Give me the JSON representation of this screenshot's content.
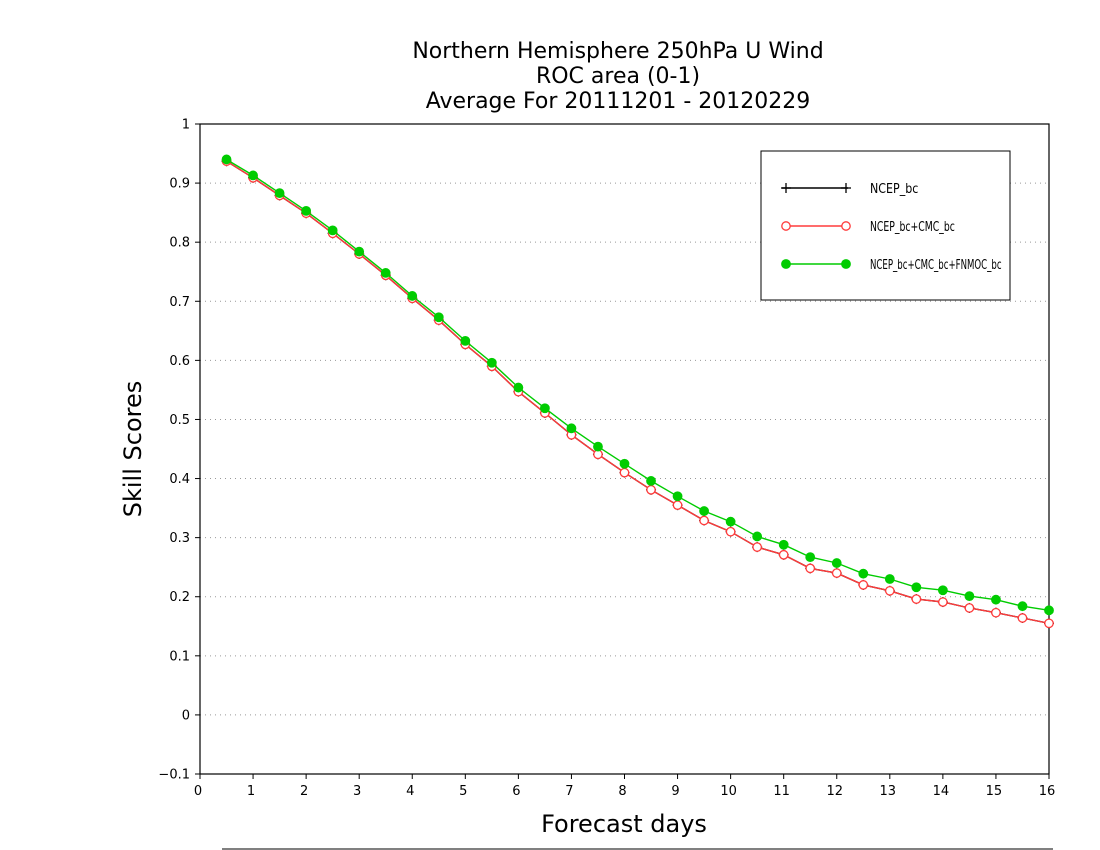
{
  "chart_data": {
    "type": "line",
    "title_lines": [
      "Northern Hemisphere 250hPa U Wind",
      "ROC area (0-1)",
      "Average For 20111201 - 20120229"
    ],
    "xlabel": "Forecast days",
    "ylabel": "Skill Scores",
    "xlim": [
      0,
      16
    ],
    "ylim": [
      -0.1,
      1
    ],
    "xticks": [
      "0",
      "1",
      "2",
      "3",
      "4",
      "5",
      "6",
      "7",
      "8",
      "9",
      "10",
      "11",
      "12",
      "13",
      "14",
      "15",
      "16"
    ],
    "yticks": [
      "−0.1",
      "0",
      "0.1",
      "0.2",
      "0.3",
      "0.4",
      "0.5",
      "0.6",
      "0.7",
      "0.8",
      "0.9",
      "1"
    ],
    "grid": "horizontal dotted",
    "legend_position": "top-right",
    "x": [
      0.5,
      1,
      1.5,
      2,
      2.5,
      3,
      3.5,
      4,
      4.5,
      5,
      5.5,
      6,
      6.5,
      7,
      7.5,
      8,
      8.5,
      9,
      9.5,
      10,
      10.5,
      11,
      11.5,
      12,
      12.5,
      13,
      13.5,
      14,
      14.5,
      15,
      15.5,
      16
    ],
    "series": [
      {
        "name": "NCEP_bc",
        "color": "#000000",
        "marker": "plus",
        "values": [
          0.937,
          0.909,
          0.879,
          0.849,
          0.815,
          0.78,
          0.744,
          0.705,
          0.668,
          0.627,
          0.59,
          0.547,
          0.511,
          0.474,
          0.441,
          0.41,
          0.381,
          0.355,
          0.329,
          0.31,
          0.284,
          0.271,
          0.248,
          0.24,
          0.22,
          0.21,
          0.196,
          0.191,
          0.181,
          0.173,
          0.164,
          0.155
        ]
      },
      {
        "name": "NCEP_bc+CMC_bc",
        "color": "#ff3b3b",
        "marker": "open-circle",
        "values": [
          0.937,
          0.909,
          0.879,
          0.849,
          0.815,
          0.78,
          0.744,
          0.705,
          0.668,
          0.627,
          0.59,
          0.547,
          0.511,
          0.474,
          0.441,
          0.41,
          0.381,
          0.355,
          0.329,
          0.31,
          0.284,
          0.271,
          0.248,
          0.24,
          0.22,
          0.21,
          0.196,
          0.191,
          0.181,
          0.173,
          0.164,
          0.155
        ]
      },
      {
        "name": "NCEP_bc+CMC_bc+FNMOC_bc",
        "color": "#00cc00",
        "marker": "filled-circle",
        "values": [
          0.94,
          0.913,
          0.883,
          0.853,
          0.82,
          0.784,
          0.748,
          0.709,
          0.673,
          0.633,
          0.596,
          0.554,
          0.519,
          0.485,
          0.454,
          0.425,
          0.396,
          0.37,
          0.345,
          0.327,
          0.302,
          0.288,
          0.267,
          0.257,
          0.239,
          0.23,
          0.216,
          0.211,
          0.201,
          0.195,
          0.184,
          0.177
        ]
      }
    ]
  }
}
